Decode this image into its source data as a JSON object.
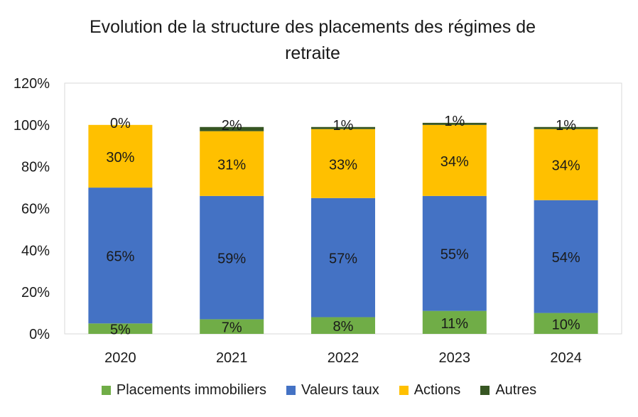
{
  "chart_data": {
    "type": "bar",
    "stacked": true,
    "title": "Evolution de la structure des placements des régimes de retraite",
    "title_lines": [
      "Evolution de la structure des placements des régimes de",
      "retraite"
    ],
    "categories": [
      "2020",
      "2021",
      "2022",
      "2023",
      "2024"
    ],
    "ylim": [
      0,
      120
    ],
    "y_ticks": [
      "0%",
      "20%",
      "40%",
      "60%",
      "80%",
      "100%",
      "120%"
    ],
    "grid": false,
    "legend_position": "bottom",
    "series": [
      {
        "name": "Placements immobiliers",
        "color": "#70ad47",
        "values": [
          5,
          7,
          8,
          11,
          10
        ],
        "labels": [
          "5%",
          "7%",
          "8%",
          "11%",
          "10%"
        ]
      },
      {
        "name": "Valeurs taux",
        "color": "#4472c4",
        "values": [
          65,
          59,
          57,
          55,
          54
        ],
        "labels": [
          "65%",
          "59%",
          "57%",
          "55%",
          "54%"
        ]
      },
      {
        "name": "Actions",
        "color": "#ffc000",
        "values": [
          30,
          31,
          33,
          34,
          34
        ],
        "labels": [
          "30%",
          "31%",
          "33%",
          "34%",
          "34%"
        ]
      },
      {
        "name": "Autres",
        "color": "#375623",
        "values": [
          0,
          2,
          1,
          1,
          1
        ],
        "labels": [
          "0%",
          "2%",
          "1%",
          "1%",
          "1%"
        ]
      }
    ]
  }
}
